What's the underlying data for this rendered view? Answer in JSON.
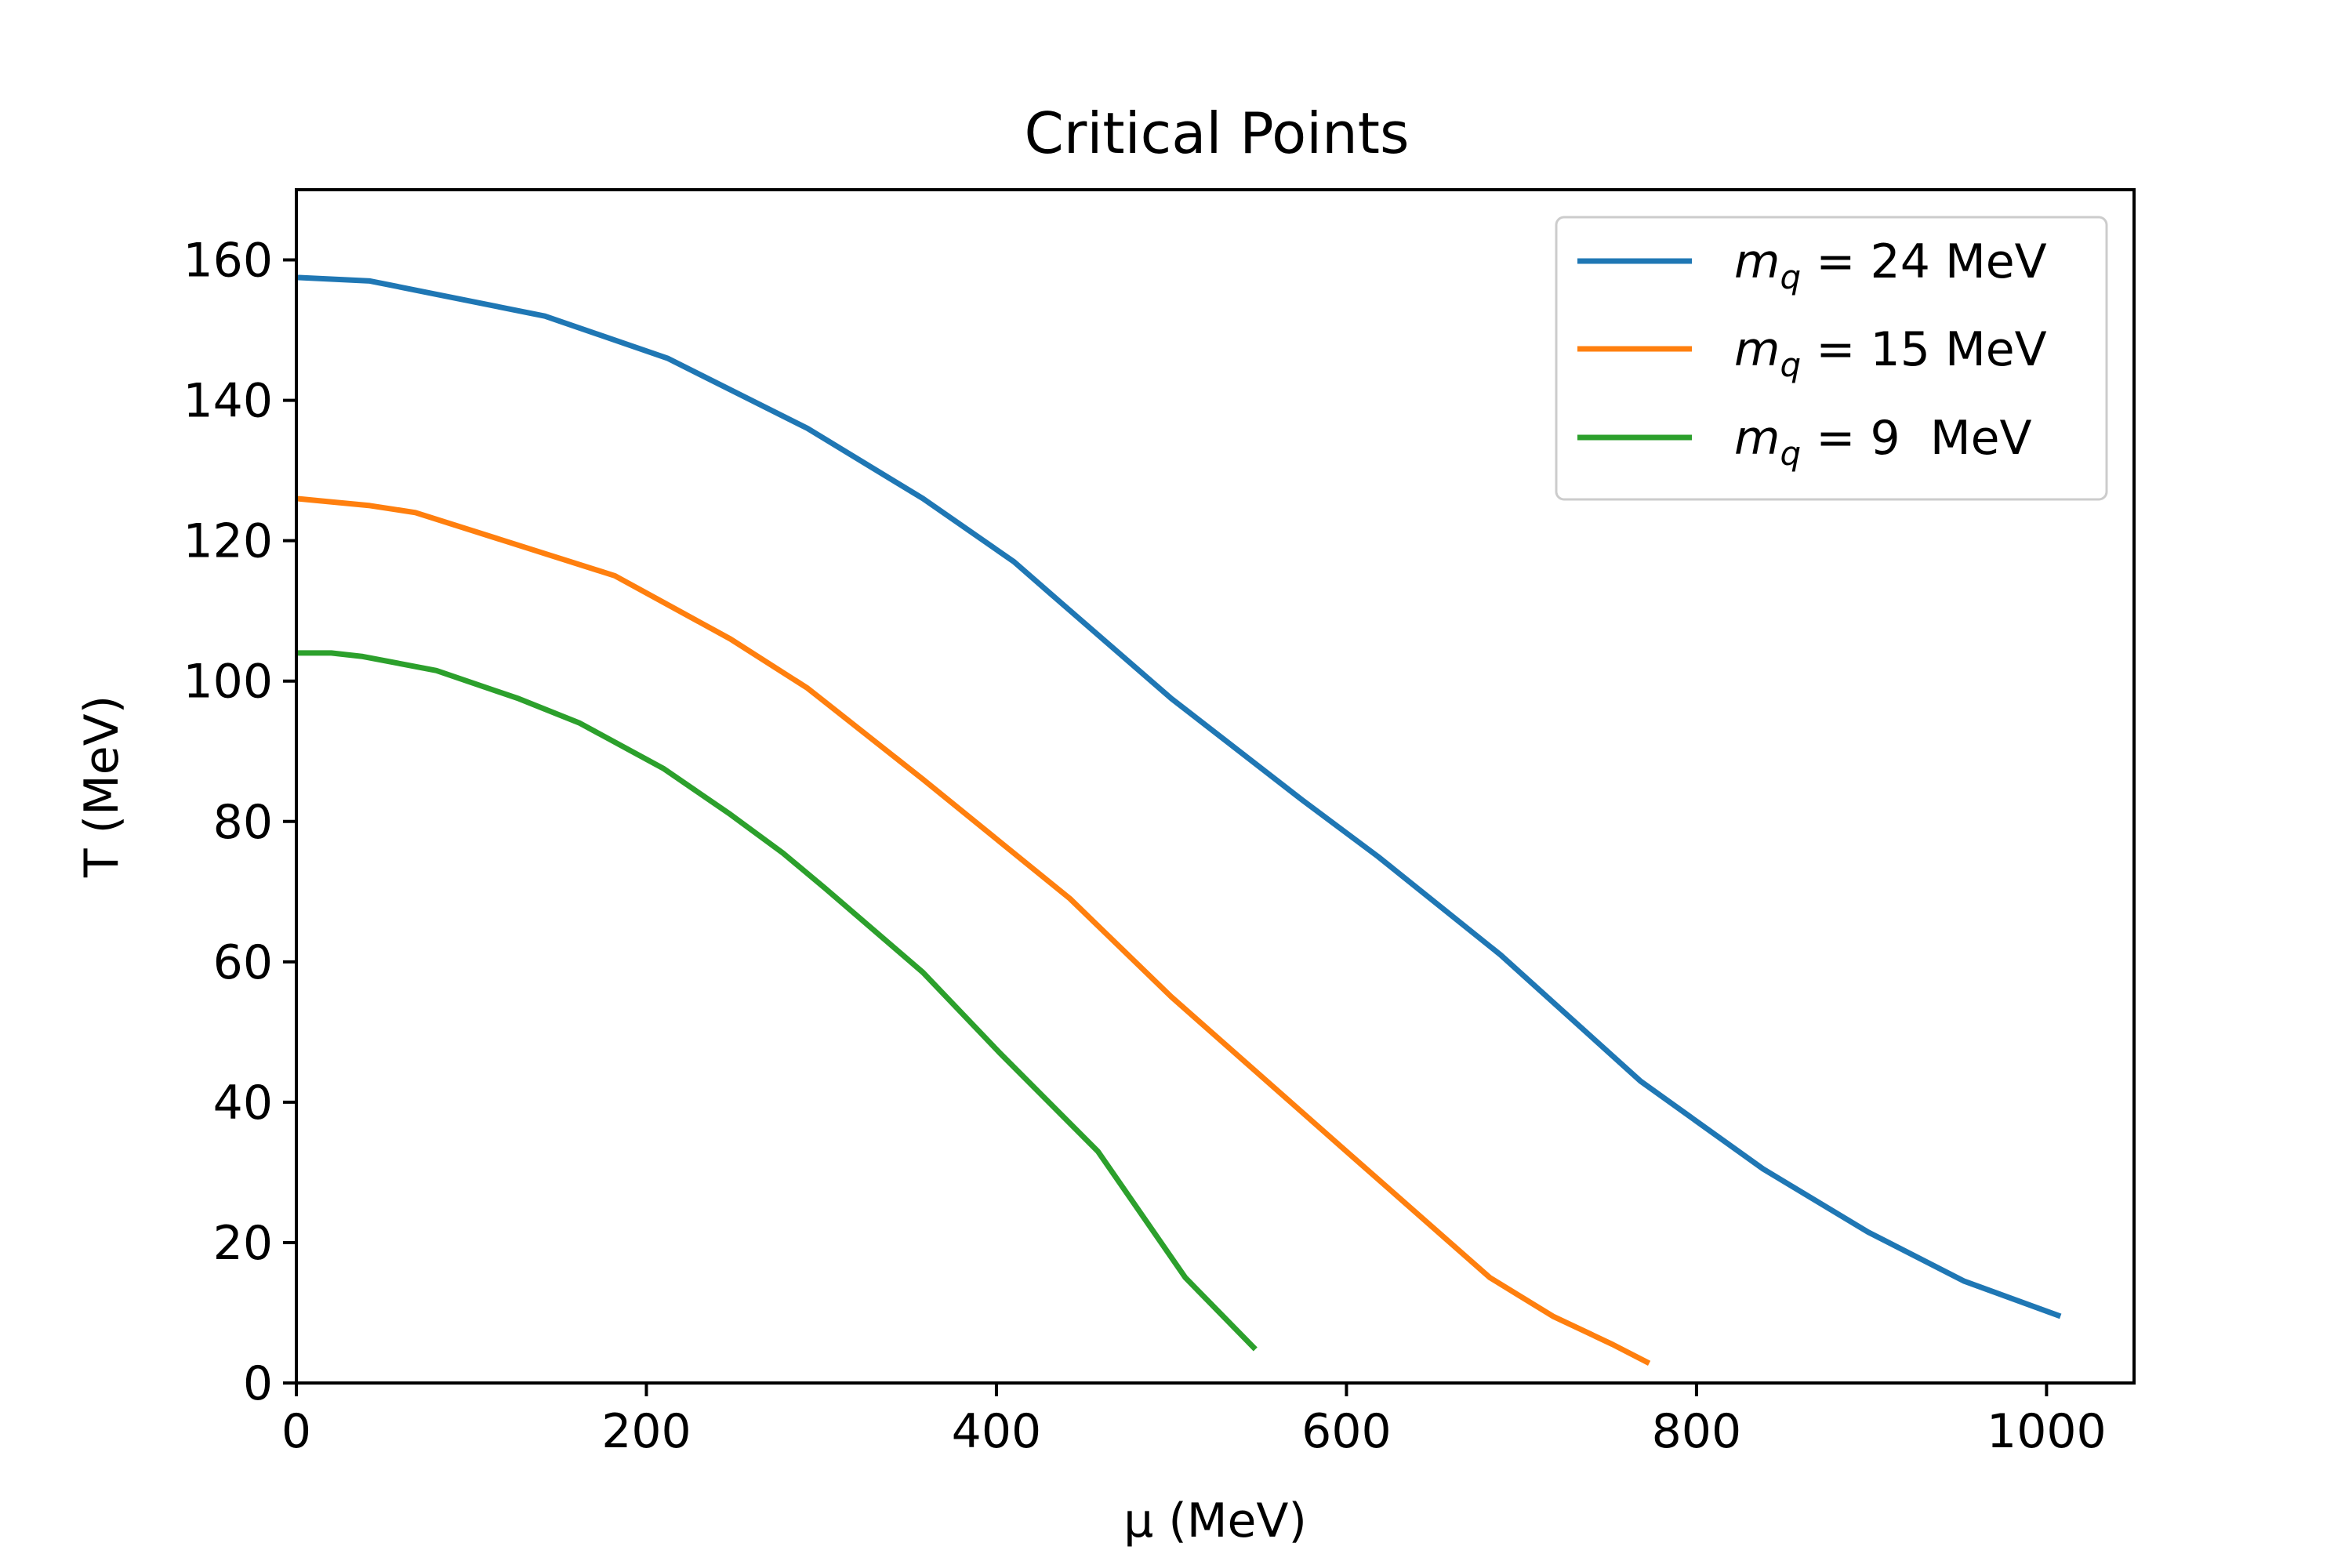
{
  "chart_data": {
    "type": "line",
    "title": "Critical Points",
    "xlabel": "μ (MeV)",
    "ylabel": "T (MeV)",
    "xlim": [
      0,
      1050
    ],
    "ylim": [
      0,
      170
    ],
    "xticks": [
      0,
      200,
      400,
      600,
      800,
      1000
    ],
    "yticks": [
      0,
      20,
      40,
      60,
      80,
      100,
      120,
      140,
      160
    ],
    "grid": false,
    "legend_position": "top-right",
    "series": [
      {
        "name": "m_q = 24 MeV",
        "legend": {
          "var": "m",
          "sub": "q",
          "eq": " = ",
          "value": "24",
          "unit": " MeV"
        },
        "color": "#1f77b4",
        "x": [
          0,
          42,
          142,
          212,
          292,
          358,
          410,
          433,
          500,
          575,
          618,
          688,
          768,
          838,
          898,
          953,
          1008
        ],
        "y": [
          157.5,
          157,
          152,
          146,
          136,
          126,
          117,
          112,
          97.5,
          83,
          75,
          61,
          43,
          30.5,
          21.5,
          14.5,
          9.5
        ]
      },
      {
        "name": "m_q = 15 MeV",
        "legend": {
          "var": "m",
          "sub": "q",
          "eq": " = ",
          "value": "15",
          "unit": " MeV"
        },
        "color": "#ff7f0e",
        "x": [
          0,
          42,
          68,
          182,
          248,
          292,
          358,
          442,
          500,
          600,
          682,
          718,
          752,
          773
        ],
        "y": [
          126,
          125,
          124,
          115,
          106,
          99,
          86,
          69,
          55,
          33,
          15,
          9.5,
          5.5,
          2.8
        ]
      },
      {
        "name": "m_q = 9 MeV",
        "legend": {
          "var": "m",
          "sub": "q",
          "eq": " = ",
          "value": "9",
          "unit": "  MeV"
        },
        "color": "#2ca02c",
        "x": [
          0,
          20,
          38,
          80,
          127,
          162,
          210,
          248,
          278,
          302,
          358,
          402,
          458,
          508,
          548
        ],
        "y": [
          104,
          104,
          103.5,
          101.5,
          97.5,
          94,
          87.5,
          81,
          75.5,
          70.5,
          58.5,
          47,
          33,
          15,
          4.8
        ]
      }
    ]
  }
}
